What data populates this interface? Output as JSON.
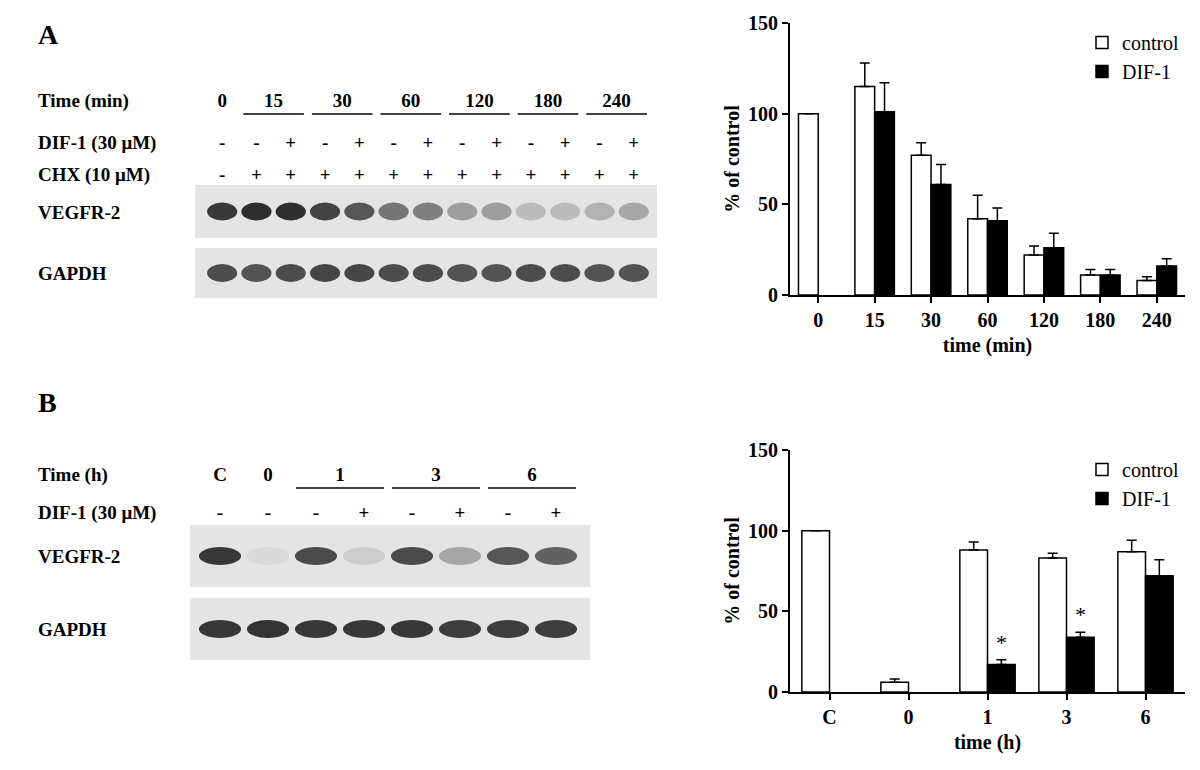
{
  "chart_data": [
    {
      "type": "bar",
      "categories": [
        "0",
        "15",
        "30",
        "60",
        "120",
        "180",
        "240"
      ],
      "series": [
        {
          "name": "control",
          "color": "#ffffff",
          "values": [
            100,
            115,
            77,
            42,
            22,
            11,
            8
          ],
          "errors": [
            null,
            13,
            7,
            13,
            5,
            3,
            2
          ]
        },
        {
          "name": "DIF-1",
          "color": "#000000",
          "values": [
            null,
            101,
            61,
            41,
            26,
            11,
            16
          ],
          "errors": [
            null,
            16,
            11,
            7,
            8,
            3,
            4
          ]
        }
      ],
      "xlabel": "time (min)",
      "ylabel": "% of control",
      "ylim": [
        0,
        150
      ],
      "yticks": [
        0,
        50,
        100,
        150
      ],
      "legend": "top right",
      "grid": false
    },
    {
      "type": "bar",
      "categories": [
        "C",
        "0",
        "1",
        "3",
        "6"
      ],
      "series": [
        {
          "name": "control",
          "color": "#ffffff",
          "values": [
            100,
            6,
            88,
            83,
            87
          ],
          "errors": [
            null,
            2,
            5,
            3,
            7
          ]
        },
        {
          "name": "DIF-1",
          "color": "#000000",
          "values": [
            null,
            null,
            17,
            34,
            72
          ],
          "errors": [
            null,
            null,
            3,
            3,
            10
          ]
        }
      ],
      "xlabel": "time (h)",
      "ylabel": "% of control",
      "ylim": [
        0,
        150
      ],
      "yticks": [
        0,
        50,
        100,
        150
      ],
      "legend": "top right",
      "grid": false,
      "annotations": [
        {
          "text": "*",
          "category": "1",
          "series": "DIF-1",
          "y": 22
        },
        {
          "text": "*",
          "category": "3",
          "series": "DIF-1",
          "y": 39
        }
      ]
    }
  ],
  "blots": [
    {
      "label": "A",
      "rows": [
        {
          "name": "Time (min)",
          "groups": [
            {
              "text": "0",
              "lanes": 1
            },
            {
              "text": "15",
              "lanes": 2
            },
            {
              "text": "30",
              "lanes": 2
            },
            {
              "text": "60",
              "lanes": 2
            },
            {
              "text": "120",
              "lanes": 2
            },
            {
              "text": "180",
              "lanes": 2
            },
            {
              "text": "240",
              "lanes": 2
            }
          ]
        },
        {
          "name": "DIF-1 (30 μM)",
          "marks": [
            "-",
            "-",
            "+",
            "-",
            "+",
            "-",
            "+",
            "-",
            "+",
            "-",
            "+",
            "-",
            "+"
          ]
        },
        {
          "name": "CHX (10 μM)",
          "marks": [
            "-",
            "+",
            "+",
            "+",
            "+",
            "+",
            "+",
            "+",
            "+",
            "+",
            "+",
            "+",
            "+"
          ]
        }
      ],
      "bands": [
        {
          "name": "VEGFR-2",
          "intensity": [
            0.85,
            0.9,
            0.9,
            0.8,
            0.7,
            0.55,
            0.5,
            0.35,
            0.35,
            0.2,
            0.2,
            0.25,
            0.3
          ]
        },
        {
          "name": "GAPDH",
          "intensity": [
            0.75,
            0.72,
            0.75,
            0.78,
            0.78,
            0.75,
            0.75,
            0.72,
            0.72,
            0.75,
            0.75,
            0.72,
            0.72
          ]
        }
      ]
    },
    {
      "label": "B",
      "rows": [
        {
          "name": "Time (h)",
          "groups": [
            {
              "text": "C",
              "lanes": 1
            },
            {
              "text": "0",
              "lanes": 1
            },
            {
              "text": "1",
              "lanes": 2
            },
            {
              "text": "3",
              "lanes": 2
            },
            {
              "text": "6",
              "lanes": 2
            }
          ]
        },
        {
          "name": "DIF-1 (30 μM)",
          "marks": [
            "-",
            "-",
            "-",
            "+",
            "-",
            "+",
            "-",
            "+"
          ]
        }
      ],
      "bands": [
        {
          "name": "VEGFR-2",
          "intensity": [
            0.85,
            0.05,
            0.75,
            0.1,
            0.75,
            0.3,
            0.7,
            0.65
          ]
        },
        {
          "name": "GAPDH",
          "intensity": [
            0.85,
            0.88,
            0.85,
            0.85,
            0.85,
            0.82,
            0.82,
            0.82
          ]
        }
      ]
    }
  ]
}
